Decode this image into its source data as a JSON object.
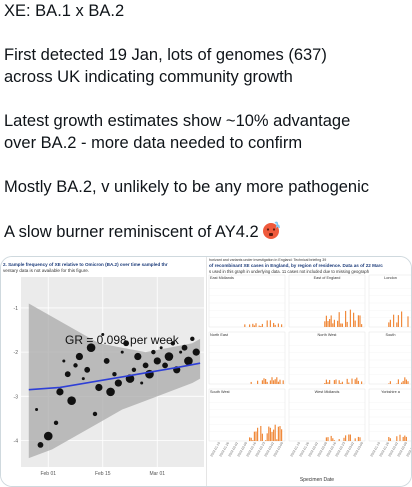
{
  "tweet": {
    "lines": [
      "XE: BA.1 x BA.2",
      "",
      "First detected 19 Jan, lots of genomes (637)",
      "across UK indicating community growth",
      "",
      "Latest growth estimates show ~10% advantage",
      "over BA.2 - more data needed to confirm",
      "",
      "Mostly BA.2, v unlikely to be any more pathogenic",
      "",
      "A slow burner reminiscent of AY4.2"
    ],
    "emoji": "hot-face-emoji"
  },
  "media": {
    "left": {
      "caption_line1": "2. Sample frequency of XE relative to Omicron (BA.2) over time sampled thr",
      "caption_line2": "ventary data is not available for this figure.",
      "annotation": "GR = 0.098 per week"
    },
    "right": {
      "caption_line0": "horizant and variants under investigation in England: Technical briefing 39",
      "caption_line1": "of recombinant XE cases in England, by region of residence. Data as of 22 Marc",
      "caption_line2": "s used in this graph in underlying data. 11 cases not included due to missing geograph",
      "regions": [
        "East Midlands",
        "East of England",
        "London",
        "North East",
        "North West",
        "South",
        "South West",
        "West Midlands",
        "Yorkshire a"
      ],
      "x_axis_label": "Specimen Date",
      "bar_color": "#f08a3c"
    }
  },
  "chart_data": {
    "type": "scatter",
    "title": "",
    "xlabel": "",
    "ylabel": "",
    "x_tick_labels": [
      "Feb 01",
      "Feb 15",
      "Mar 01"
    ],
    "y_tick_labels": [
      "-1",
      "-2",
      "-3",
      "-4"
    ],
    "annotation": "GR = 0.098 per week",
    "series": [
      {
        "type": "scatter",
        "points": [
          {
            "x": 24,
            "y": -3.3
          },
          {
            "x": 25,
            "y": -4.1
          },
          {
            "x": 27,
            "y": -3.9
          },
          {
            "x": 29,
            "y": -3.6
          },
          {
            "x": 30,
            "y": -2.9
          },
          {
            "x": 31,
            "y": -2.2
          },
          {
            "x": 32,
            "y": -2.5
          },
          {
            "x": 33,
            "y": -3.1
          },
          {
            "x": 34,
            "y": -2.3
          },
          {
            "x": 35,
            "y": -2.1
          },
          {
            "x": 36,
            "y": -2.6
          },
          {
            "x": 37,
            "y": -2.4
          },
          {
            "x": 38,
            "y": -1.9
          },
          {
            "x": 39,
            "y": -3.4
          },
          {
            "x": 40,
            "y": -2.8
          },
          {
            "x": 41,
            "y": -1.6
          },
          {
            "x": 42,
            "y": -2.2
          },
          {
            "x": 43,
            "y": -2.9
          },
          {
            "x": 44,
            "y": -2.5
          },
          {
            "x": 45,
            "y": -2.7
          },
          {
            "x": 46,
            "y": -2.0
          },
          {
            "x": 47,
            "y": -1.8
          },
          {
            "x": 48,
            "y": -2.6
          },
          {
            "x": 49,
            "y": -2.4
          },
          {
            "x": 50,
            "y": -2.1
          },
          {
            "x": 51,
            "y": -2.7
          },
          {
            "x": 52,
            "y": -2.3
          },
          {
            "x": 53,
            "y": -2.5
          },
          {
            "x": 54,
            "y": -2.0
          },
          {
            "x": 55,
            "y": -2.2
          },
          {
            "x": 56,
            "y": -1.9
          },
          {
            "x": 57,
            "y": -2.3
          },
          {
            "x": 58,
            "y": -2.1
          },
          {
            "x": 59,
            "y": -1.8
          },
          {
            "x": 60,
            "y": -2.4
          },
          {
            "x": 61,
            "y": -2.0
          },
          {
            "x": 62,
            "y": -1.9
          },
          {
            "x": 63,
            "y": -2.2
          },
          {
            "x": 64,
            "y": -1.7
          },
          {
            "x": 65,
            "y": -2.0
          }
        ]
      },
      {
        "type": "line",
        "x": [
          22,
          30,
          40,
          50,
          60,
          66
        ],
        "y": [
          -2.85,
          -2.8,
          -2.65,
          -2.5,
          -2.35,
          -2.25
        ]
      }
    ],
    "ribbon": {
      "x": [
        22,
        28,
        34,
        40,
        46,
        52,
        58,
        64,
        66
      ],
      "upper": [
        -0.9,
        -1.2,
        -1.5,
        -1.8,
        -1.9,
        -2.0,
        -1.9,
        -1.8,
        -1.7
      ],
      "lower": [
        -4.4,
        -4.2,
        -3.9,
        -3.6,
        -3.3,
        -3.1,
        -2.9,
        -2.7,
        -2.6
      ]
    },
    "xlim": [
      20,
      67
    ],
    "ylim": [
      -4.6,
      -0.3
    ]
  }
}
